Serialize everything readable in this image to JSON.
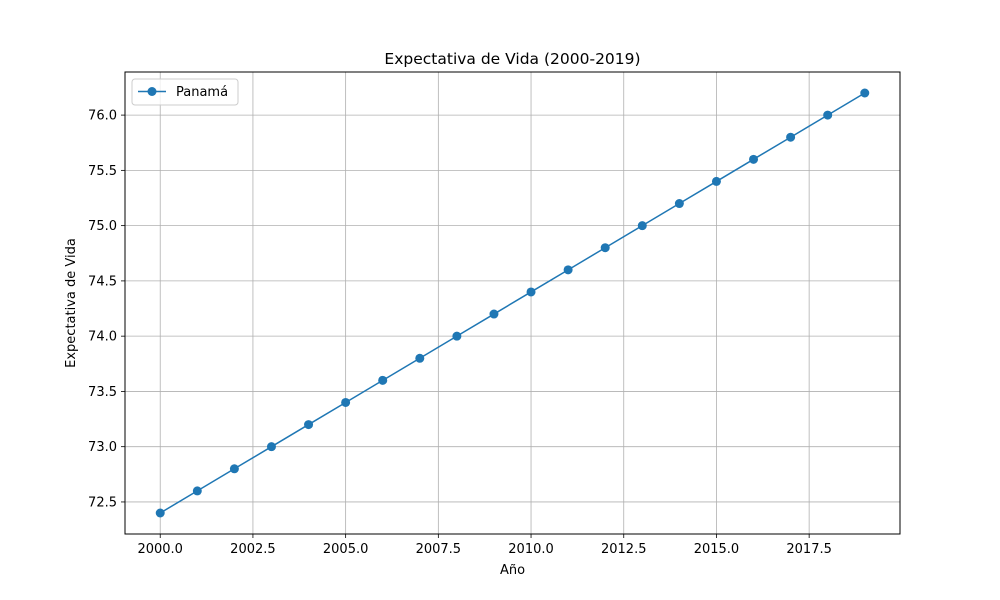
{
  "chart_data": {
    "type": "line",
    "title": "Expectativa de Vida (2000-2019)",
    "xlabel": "Año",
    "ylabel": "Expectativa de Vida",
    "x": [
      2000,
      2001,
      2002,
      2003,
      2004,
      2005,
      2006,
      2007,
      2008,
      2009,
      2010,
      2011,
      2012,
      2013,
      2014,
      2015,
      2016,
      2017,
      2018,
      2019
    ],
    "series": [
      {
        "name": "Panamá",
        "color": "#1f77b4",
        "marker": "circle",
        "values": [
          72.4,
          72.6,
          72.8,
          73.0,
          73.2,
          73.4,
          73.6,
          73.8,
          74.0,
          74.2,
          74.4,
          74.6,
          74.8,
          75.0,
          75.2,
          75.4,
          75.6,
          75.8,
          76.0,
          76.2
        ]
      }
    ],
    "xlim": [
      1999.05,
      2019.95
    ],
    "ylim": [
      72.21,
      76.39
    ],
    "xticks": [
      2000.0,
      2002.5,
      2005.0,
      2007.5,
      2010.0,
      2012.5,
      2015.0,
      2017.5
    ],
    "xtick_labels": [
      "2000.0",
      "2002.5",
      "2005.0",
      "2007.5",
      "2010.0",
      "2012.5",
      "2015.0",
      "2017.5"
    ],
    "yticks": [
      72.5,
      73.0,
      73.5,
      74.0,
      74.5,
      75.0,
      75.5,
      76.0
    ],
    "ytick_labels": [
      "72.5",
      "73.0",
      "73.5",
      "74.0",
      "74.5",
      "75.0",
      "75.5",
      "76.0"
    ],
    "grid": true,
    "legend_position": "top-left"
  }
}
